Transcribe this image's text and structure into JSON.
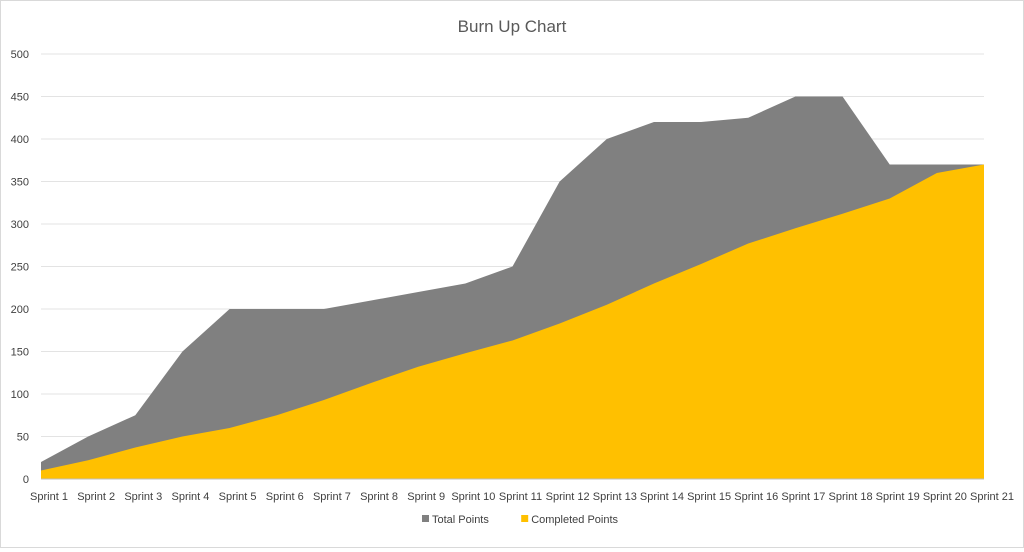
{
  "chart_data": {
    "type": "area",
    "title": "Burn Up Chart",
    "categories": [
      "Sprint 1",
      "Sprint 2",
      "Sprint 3",
      "Sprint 4",
      "Sprint 5",
      "Sprint 6",
      "Sprint 7",
      "Sprint 8",
      "Sprint 9",
      "Sprint 10",
      "Sprint 11",
      "Sprint 12",
      "Sprint 13",
      "Sprint 14",
      "Sprint 15",
      "Sprint 16",
      "Sprint 17",
      "Sprint 18",
      "Sprint 19",
      "Sprint 20",
      "Sprint 21"
    ],
    "series": [
      {
        "name": "Total Points",
        "color": "#808080",
        "values": [
          20,
          50,
          75,
          150,
          200,
          200,
          200,
          210,
          220,
          230,
          250,
          350,
          400,
          420,
          420,
          425,
          450,
          450,
          370,
          370,
          370
        ]
      },
      {
        "name": "Completed Points",
        "color": "#ffc000",
        "values": [
          10,
          22,
          37,
          50,
          60,
          75,
          93,
          113,
          132,
          148,
          163,
          183,
          205,
          230,
          253,
          277,
          295,
          312,
          330,
          360,
          370
        ]
      }
    ],
    "ylim": [
      0,
      500
    ],
    "yticks": [
      "0",
      "50",
      "100",
      "150",
      "200",
      "250",
      "300",
      "350",
      "400",
      "450",
      "500"
    ],
    "grid": true,
    "legend_position": "bottom"
  }
}
